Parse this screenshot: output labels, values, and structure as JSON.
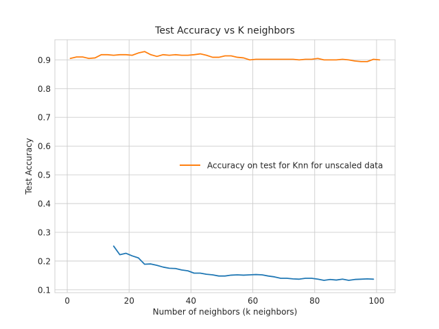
{
  "chart_data": {
    "type": "line",
    "title": "Test Accuracy vs K neighbors",
    "xlabel": "Number of neighbors (k neighbors)",
    "ylabel": "Test Accuracy",
    "xlim": [
      -4,
      106
    ],
    "ylim": [
      0.09,
      0.97
    ],
    "xticks": [
      0,
      20,
      40,
      60,
      80,
      100
    ],
    "yticks": [
      0.1,
      0.2,
      0.3,
      0.4,
      0.5,
      0.6,
      0.7,
      0.8,
      0.9
    ],
    "xtick_labels": [
      "0",
      "20",
      "40",
      "60",
      "80",
      "100"
    ],
    "ytick_labels": [
      "0.1",
      "0.2",
      "0.3",
      "0.4",
      "0.5",
      "0.6",
      "0.7",
      "0.8",
      "0.9"
    ],
    "grid": true,
    "legend": {
      "placement": "center-right"
    },
    "series": [
      {
        "name": "Accuracy on test for Knn for unscaled data",
        "color": "#ff7f0e",
        "show_in_legend": true,
        "x": [
          1,
          3,
          5,
          7,
          9,
          11,
          13,
          15,
          17,
          19,
          21,
          23,
          25,
          27,
          29,
          31,
          33,
          35,
          37,
          39,
          41,
          43,
          45,
          47,
          49,
          51,
          53,
          55,
          57,
          59,
          61,
          63,
          65,
          67,
          69,
          71,
          73,
          75,
          77,
          79,
          81,
          83,
          85,
          87,
          89,
          91,
          93,
          95,
          97,
          99,
          101
        ],
        "y": [
          0.905,
          0.91,
          0.91,
          0.905,
          0.907,
          0.918,
          0.918,
          0.916,
          0.918,
          0.918,
          0.916,
          0.924,
          0.929,
          0.918,
          0.912,
          0.918,
          0.916,
          0.918,
          0.916,
          0.916,
          0.918,
          0.921,
          0.916,
          0.909,
          0.909,
          0.914,
          0.914,
          0.909,
          0.907,
          0.9,
          0.902,
          0.902,
          0.902,
          0.902,
          0.902,
          0.902,
          0.902,
          0.9,
          0.902,
          0.902,
          0.905,
          0.9,
          0.9,
          0.9,
          0.902,
          0.9,
          0.896,
          0.894,
          0.894,
          0.902,
          0.9
        ]
      },
      {
        "name": "",
        "color": "#1f77b4",
        "show_in_legend": false,
        "x": [
          15,
          17,
          19,
          21,
          23,
          25,
          27,
          29,
          31,
          33,
          35,
          37,
          39,
          41,
          43,
          45,
          47,
          49,
          51,
          53,
          55,
          57,
          59,
          61,
          63,
          65,
          67,
          69,
          71,
          73,
          75,
          77,
          79,
          81,
          83,
          85,
          87,
          89,
          91,
          93,
          95,
          97,
          99
        ],
        "y": [
          0.252,
          0.222,
          0.227,
          0.218,
          0.211,
          0.189,
          0.19,
          0.185,
          0.179,
          0.175,
          0.174,
          0.169,
          0.166,
          0.158,
          0.158,
          0.154,
          0.152,
          0.148,
          0.148,
          0.151,
          0.152,
          0.151,
          0.152,
          0.153,
          0.152,
          0.148,
          0.145,
          0.14,
          0.14,
          0.138,
          0.137,
          0.14,
          0.14,
          0.137,
          0.133,
          0.136,
          0.134,
          0.137,
          0.133,
          0.136,
          0.137,
          0.138,
          0.137
        ]
      }
    ]
  }
}
